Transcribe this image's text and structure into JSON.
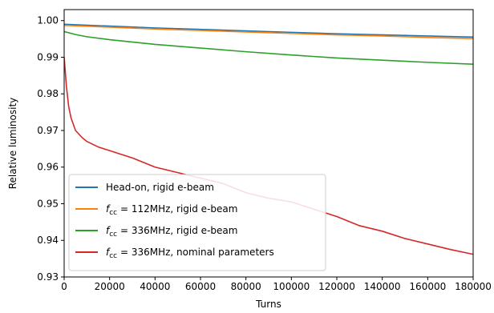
{
  "chart_data": {
    "type": "line",
    "title": "",
    "xlabel": "Turns",
    "ylabel": "Relative luminosity",
    "xlim": [
      0,
      180000
    ],
    "ylim": [
      0.93,
      1.003
    ],
    "xticks": [
      0,
      20000,
      40000,
      60000,
      80000,
      100000,
      120000,
      140000,
      160000,
      180000
    ],
    "xtick_labels": [
      "0",
      "20000",
      "40000",
      "60000",
      "80000",
      "100000",
      "120000",
      "140000",
      "160000",
      "180000"
    ],
    "yticks": [
      0.93,
      0.94,
      0.95,
      0.96,
      0.97,
      0.98,
      0.99,
      1.0
    ],
    "ytick_labels": [
      "0.93",
      "0.94",
      "0.95",
      "0.96",
      "0.97",
      "0.98",
      "0.99",
      "1.00"
    ],
    "grid": false,
    "legend_position": "lower-left",
    "series": [
      {
        "name": "Head-on, rigid e-beam",
        "label_parts": [
          {
            "text": "Head-on, rigid e-beam"
          }
        ],
        "color": "#1f77b4",
        "x": [
          0,
          20000,
          40000,
          60000,
          80000,
          100000,
          120000,
          140000,
          160000,
          180000
        ],
        "y": [
          0.999,
          0.9985,
          0.998,
          0.9976,
          0.9972,
          0.9968,
          0.9964,
          0.9961,
          0.9958,
          0.9955
        ]
      },
      {
        "name": "f_cc = 112MHz, rigid e-beam",
        "label_parts": [
          {
            "text": "f"
          },
          {
            "text": "cc",
            "sub": true
          },
          {
            "text": " = 112MHz, rigid e-beam"
          }
        ],
        "color": "#ff7f0e",
        "x": [
          0,
          20000,
          40000,
          60000,
          80000,
          100000,
          120000,
          140000,
          160000,
          180000
        ],
        "y": [
          0.9987,
          0.9982,
          0.9977,
          0.9973,
          0.9969,
          0.9965,
          0.9961,
          0.9958,
          0.9954,
          0.9951
        ]
      },
      {
        "name": "f_cc = 336MHz, rigid e-beam",
        "label_parts": [
          {
            "text": "f"
          },
          {
            "text": "cc",
            "sub": true
          },
          {
            "text": " = 336MHz, rigid e-beam"
          }
        ],
        "color": "#2ca02c",
        "x": [
          0,
          5000,
          10000,
          20000,
          40000,
          60000,
          80000,
          100000,
          120000,
          140000,
          160000,
          180000
        ],
        "y": [
          0.997,
          0.9962,
          0.9956,
          0.9948,
          0.9935,
          0.9925,
          0.9915,
          0.9906,
          0.9898,
          0.9892,
          0.9886,
          0.9881
        ]
      },
      {
        "name": "f_cc = 336MHz, nominal parameters",
        "label_parts": [
          {
            "text": "f"
          },
          {
            "text": "cc",
            "sub": true
          },
          {
            "text": " = 336MHz, nominal parameters"
          }
        ],
        "color": "#d62728",
        "x": [
          0,
          1000,
          2000,
          3000,
          5000,
          8000,
          10000,
          15000,
          20000,
          25000,
          30000,
          40000,
          50000,
          60000,
          70000,
          80000,
          90000,
          100000,
          110000,
          120000,
          130000,
          140000,
          150000,
          160000,
          170000,
          180000
        ],
        "y": [
          0.99,
          0.982,
          0.9765,
          0.9735,
          0.97,
          0.968,
          0.967,
          0.9655,
          0.9645,
          0.9635,
          0.9625,
          0.96,
          0.9585,
          0.957,
          0.9555,
          0.953,
          0.9515,
          0.9505,
          0.9485,
          0.9465,
          0.944,
          0.9425,
          0.9405,
          0.939,
          0.9375,
          0.9362
        ]
      }
    ]
  }
}
